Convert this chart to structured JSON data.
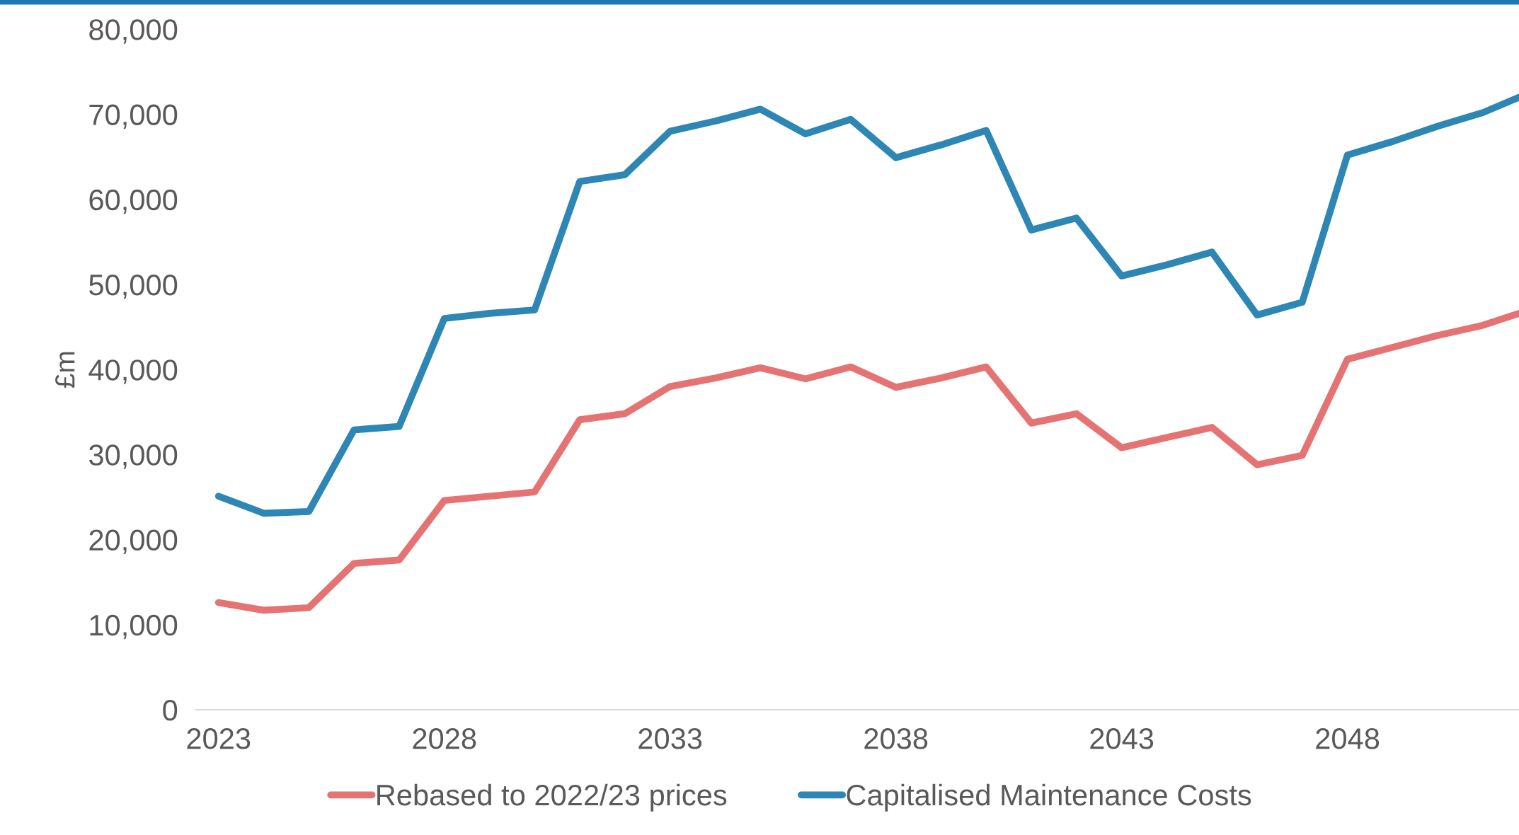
{
  "chart_data": {
    "type": "line",
    "ylabel": "£m",
    "x": [
      2023,
      2024,
      2025,
      2026,
      2027,
      2028,
      2029,
      2030,
      2031,
      2032,
      2033,
      2034,
      2035,
      2036,
      2037,
      2038,
      2039,
      2040,
      2041,
      2042,
      2043,
      2044,
      2045,
      2046,
      2047,
      2048,
      2049,
      2050,
      2051,
      2051.8
    ],
    "series": [
      {
        "name": "Rebased to 2022/23 prices",
        "color": "#e57373",
        "values": [
          12600,
          11700,
          12000,
          17200,
          17600,
          24600,
          25100,
          25600,
          34100,
          34800,
          38000,
          39000,
          40200,
          38900,
          40300,
          37900,
          39000,
          40300,
          33700,
          34800,
          30800,
          32000,
          33200,
          28800,
          29900,
          41200,
          42600,
          44000,
          45200,
          46600
        ]
      },
      {
        "name": "Capitalised Maintenance Costs",
        "color": "#2e86b5",
        "values": [
          25100,
          23100,
          23300,
          32900,
          33300,
          46000,
          46600,
          47000,
          62100,
          62900,
          68000,
          69200,
          70600,
          67700,
          69400,
          64900,
          66400,
          68100,
          56400,
          57800,
          51000,
          52300,
          53800,
          46400,
          47900,
          65200,
          66800,
          68600,
          70200,
          72000
        ]
      }
    ],
    "xlim": [
      2022.5,
      2051.8
    ],
    "xticks": [
      2023,
      2028,
      2033,
      2038,
      2043,
      2048
    ],
    "ylim": [
      0,
      80000
    ],
    "yticks": [
      {
        "value": 0,
        "label": "0"
      },
      {
        "value": 10000,
        "label": "10,000"
      },
      {
        "value": 20000,
        "label": "20,000"
      },
      {
        "value": 30000,
        "label": "30,000"
      },
      {
        "value": 40000,
        "label": "40,000"
      },
      {
        "value": 50000,
        "label": "50,000"
      },
      {
        "value": 60000,
        "label": "60,000"
      },
      {
        "value": 70000,
        "label": "70,000"
      },
      {
        "value": 80000,
        "label": "80,000"
      }
    ],
    "grid": false,
    "legend": "bottom",
    "marker": "none",
    "line_style": "solid"
  }
}
